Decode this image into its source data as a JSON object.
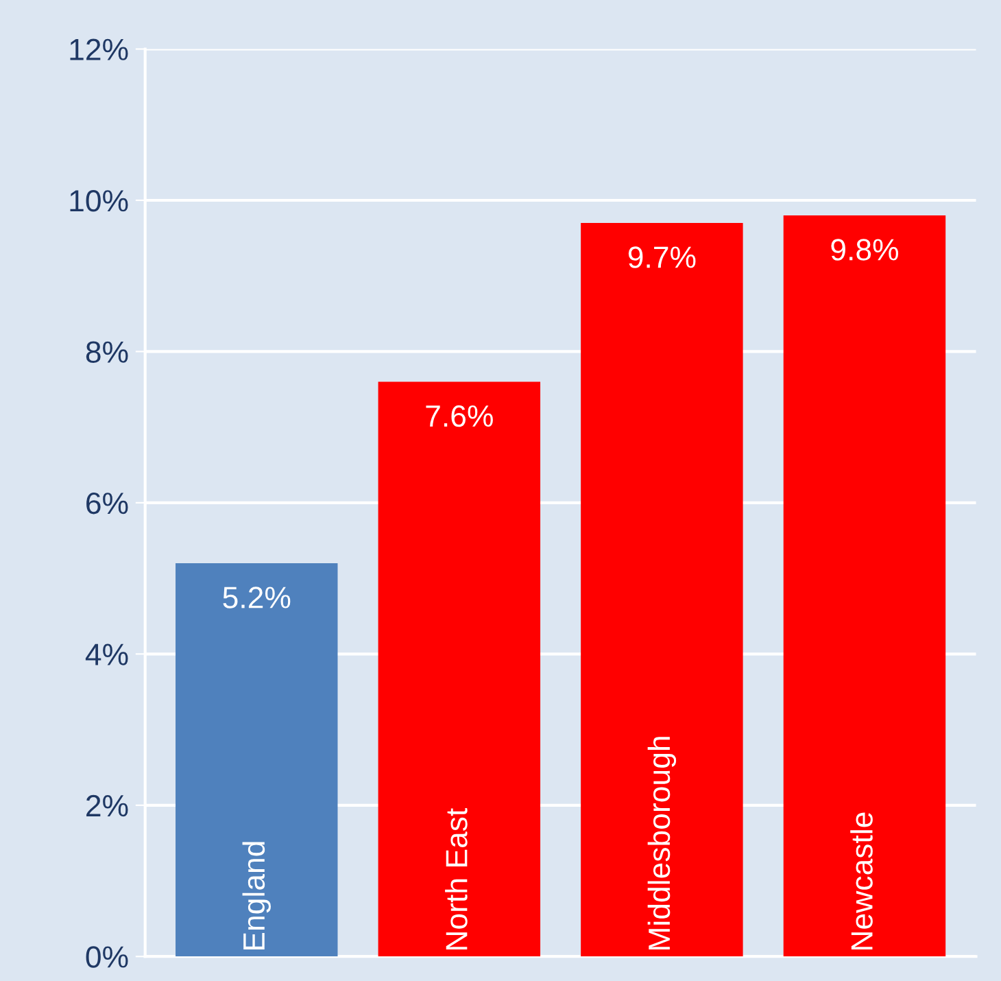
{
  "chart_data": {
    "type": "bar",
    "categories": [
      "England",
      "North East",
      "Middlesborough",
      "Newcastle"
    ],
    "values": [
      5.2,
      7.6,
      9.7,
      9.8
    ],
    "colors": [
      "#4f81bd",
      "#ff0000",
      "#ff0000",
      "#ff0000"
    ],
    "value_labels": [
      "5.2%",
      "7.6%",
      "9.7%",
      "9.8%"
    ],
    "ylim": [
      0,
      12
    ],
    "yticks": [
      {
        "value": 0,
        "label": "0%"
      },
      {
        "value": 2,
        "label": "2%"
      },
      {
        "value": 4,
        "label": "4%"
      },
      {
        "value": 6,
        "label": "6%"
      },
      {
        "value": 8,
        "label": "8%"
      },
      {
        "value": 10,
        "label": "10%"
      },
      {
        "value": 12,
        "label": "12%"
      }
    ],
    "grid": "y"
  }
}
